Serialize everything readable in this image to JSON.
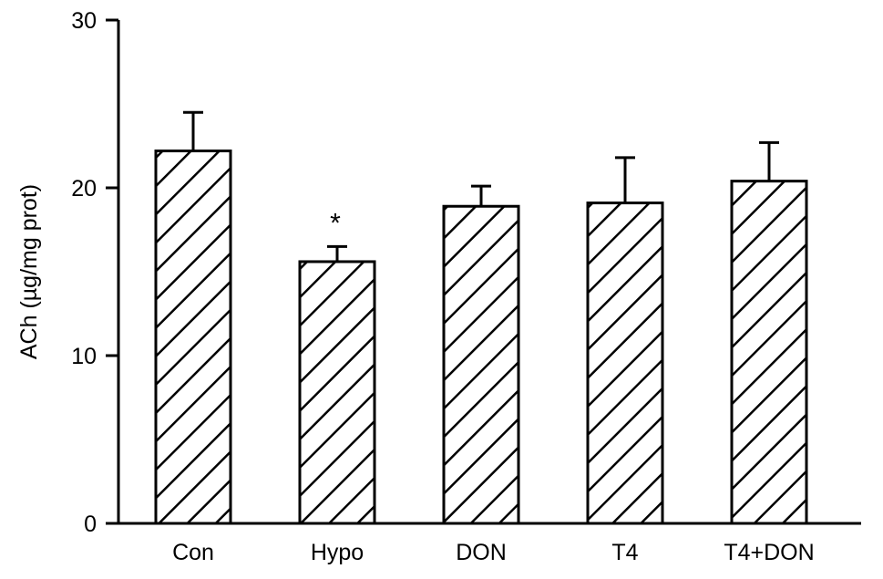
{
  "chart_data": {
    "type": "bar",
    "title": "",
    "xlabel": "",
    "ylabel": "ACh (µg/mg prot)",
    "categories": [
      "Con",
      "Hypo",
      "DON",
      "T4",
      "T4+DON"
    ],
    "series": [
      {
        "values": [
          22.2,
          15.6,
          18.9,
          19.1,
          20.4
        ],
        "errors": [
          2.3,
          0.9,
          1.2,
          2.7,
          2.3
        ]
      }
    ],
    "annotations": [
      {
        "category": "Hypo",
        "text": "*"
      }
    ],
    "ylim": [
      0,
      30
    ],
    "yticks": [
      0,
      10,
      20,
      30
    ],
    "fill": "diagonal-hatch",
    "grid": false,
    "legend": "none",
    "colors": {
      "bar_stroke": "#000000",
      "bar_fill": "#ffffff",
      "hatch": "#000000",
      "axis": "#000000"
    }
  }
}
